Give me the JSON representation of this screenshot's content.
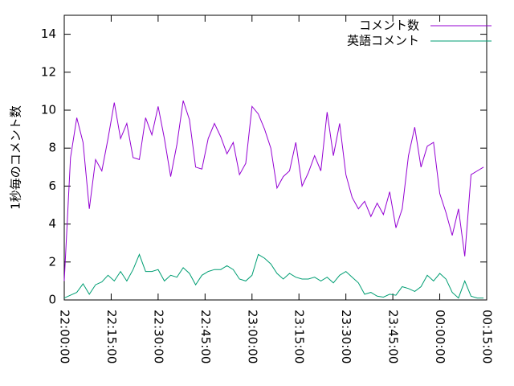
{
  "chart_data": {
    "type": "line",
    "ylabel": "1秒毎のコメント数",
    "x": [
      "22:00:00",
      "22:02:00",
      "22:04:00",
      "22:06:00",
      "22:08:00",
      "22:10:00",
      "22:12:00",
      "22:14:00",
      "22:16:00",
      "22:18:00",
      "22:20:00",
      "22:22:00",
      "22:24:00",
      "22:26:00",
      "22:28:00",
      "22:30:00",
      "22:32:00",
      "22:34:00",
      "22:36:00",
      "22:38:00",
      "22:40:00",
      "22:42:00",
      "22:44:00",
      "22:46:00",
      "22:48:00",
      "22:50:00",
      "22:52:00",
      "22:54:00",
      "22:56:00",
      "22:58:00",
      "23:00:00",
      "23:02:00",
      "23:04:00",
      "23:06:00",
      "23:08:00",
      "23:10:00",
      "23:12:00",
      "23:14:00",
      "23:16:00",
      "23:18:00",
      "23:20:00",
      "23:22:00",
      "23:24:00",
      "23:26:00",
      "23:28:00",
      "23:30:00",
      "23:32:00",
      "23:34:00",
      "23:36:00",
      "23:38:00",
      "23:40:00",
      "23:42:00",
      "23:44:00",
      "23:46:00",
      "23:48:00",
      "23:50:00",
      "23:52:00",
      "23:54:00",
      "23:56:00",
      "23:58:00",
      "00:00:00",
      "00:02:00",
      "00:04:00",
      "00:06:00",
      "00:08:00",
      "00:10:00",
      "00:12:00",
      "00:14:00"
    ],
    "series": [
      {
        "name": "コメント数",
        "color": "#9400d3",
        "values": [
          1.0,
          7.5,
          9.6,
          8.3,
          4.8,
          7.4,
          6.8,
          8.5,
          10.4,
          8.5,
          9.3,
          7.5,
          7.4,
          9.6,
          8.7,
          10.2,
          8.5,
          6.5,
          8.2,
          10.5,
          9.5,
          7.0,
          6.9,
          8.5,
          9.3,
          8.6,
          7.7,
          8.3,
          6.6,
          7.2,
          10.2,
          9.8,
          9.0,
          8.0,
          5.9,
          6.5,
          6.8,
          8.3,
          6.0,
          6.7,
          7.6,
          6.8,
          9.9,
          7.6,
          9.3,
          6.6,
          5.4,
          4.8,
          5.2,
          4.4,
          5.1,
          4.5,
          5.7,
          3.8,
          4.8,
          7.6,
          9.1,
          7.0,
          8.1,
          8.3,
          5.6,
          4.6,
          3.4,
          4.8,
          2.3,
          6.6,
          6.8,
          7.0
        ]
      },
      {
        "name": "英語コメント",
        "color": "#009e73",
        "values": [
          0.1,
          0.25,
          0.4,
          0.85,
          0.3,
          0.8,
          0.95,
          1.3,
          1.0,
          1.5,
          1.0,
          1.6,
          2.4,
          1.5,
          1.5,
          1.6,
          1.0,
          1.3,
          1.2,
          1.7,
          1.4,
          0.8,
          1.3,
          1.5,
          1.6,
          1.6,
          1.8,
          1.6,
          1.1,
          1.0,
          1.3,
          2.4,
          2.2,
          1.9,
          1.4,
          1.1,
          1.4,
          1.2,
          1.1,
          1.1,
          1.2,
          1.0,
          1.2,
          0.9,
          1.3,
          1.5,
          1.2,
          0.9,
          0.3,
          0.4,
          0.2,
          0.15,
          0.3,
          0.25,
          0.7,
          0.6,
          0.45,
          0.7,
          1.3,
          1.0,
          1.4,
          1.1,
          0.4,
          0.1,
          1.0,
          0.2,
          0.1,
          0.1
        ]
      }
    ],
    "xlim": [
      "22:00:00",
      "00:15:00"
    ],
    "xticks": [
      "22:00:00",
      "22:15:00",
      "22:30:00",
      "22:45:00",
      "23:00:00",
      "23:15:00",
      "23:30:00",
      "23:45:00",
      "00:00:00",
      "00:15:00"
    ],
    "ylim": [
      0,
      15
    ],
    "yticks": [
      0,
      2,
      4,
      6,
      8,
      10,
      12,
      14
    ],
    "legend": "top-right"
  }
}
